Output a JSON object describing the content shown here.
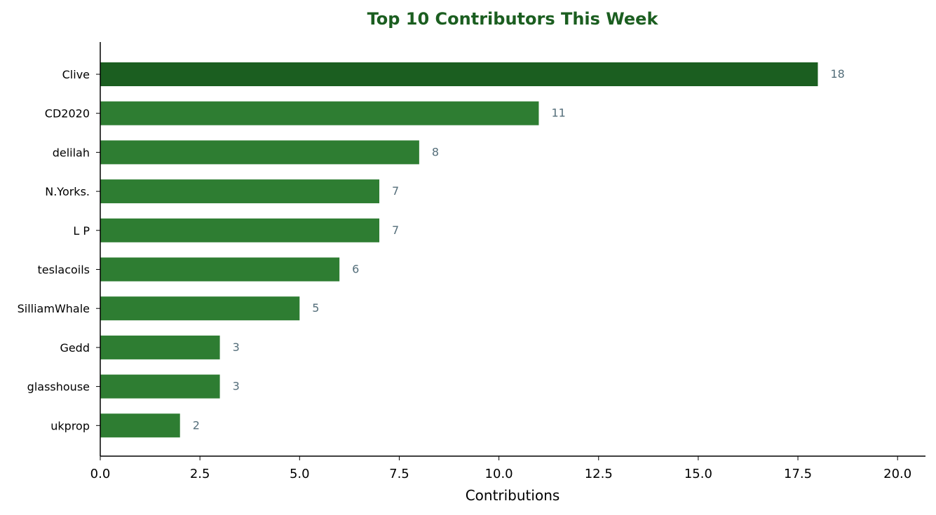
{
  "chart_data": {
    "type": "bar",
    "orientation": "horizontal",
    "title": "Top 10 Contributors This Week",
    "xlabel": "Contributions",
    "ylabel": "",
    "categories": [
      "Clive",
      "CD2020",
      "delilah",
      "N.Yorks.",
      "L P",
      "teslacoils",
      "SilliamWhale",
      "Gedd",
      "glasshouse",
      "ukprop"
    ],
    "values": [
      18,
      11,
      8,
      7,
      7,
      6,
      5,
      3,
      3,
      2
    ],
    "xlim": [
      0,
      20.7
    ],
    "xticks": [
      "0.0",
      "2.5",
      "5.0",
      "7.5",
      "10.0",
      "12.5",
      "15.0",
      "17.5",
      "20.0"
    ],
    "grid": false,
    "legend": "none",
    "colors": {
      "top_bar": "#1b5e20",
      "bar": "#2e7d32",
      "title": "#1b5e20",
      "value_label": "#546e7a",
      "axis": "#000000"
    }
  }
}
